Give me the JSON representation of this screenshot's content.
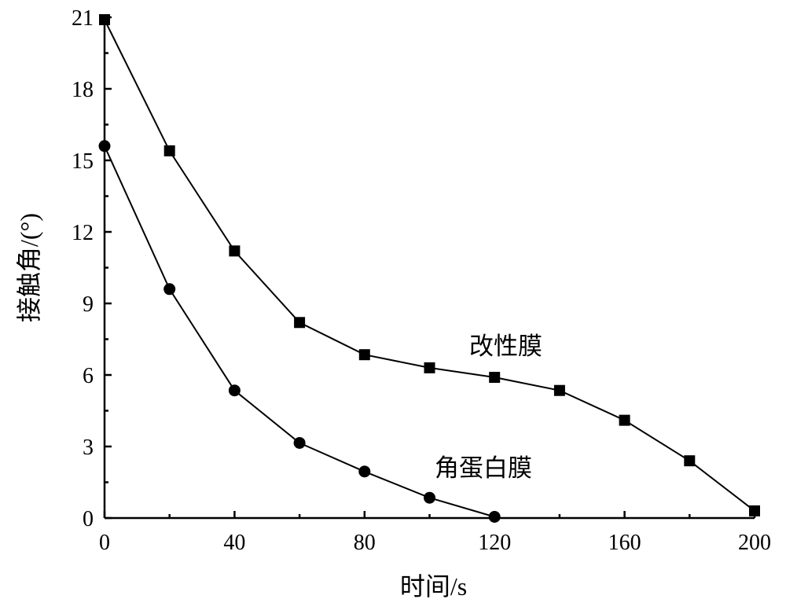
{
  "chart_data": {
    "type": "line",
    "xlabel": "时间/s",
    "ylabel": "接触角/(°)",
    "xlim": [
      0,
      200
    ],
    "ylim": [
      0,
      21
    ],
    "xticks": [
      0,
      40,
      80,
      120,
      160,
      200
    ],
    "yticks": [
      0,
      3,
      6,
      9,
      12,
      15,
      18,
      21
    ],
    "xtick_labels": [
      "0",
      "40",
      "80",
      "120",
      "160",
      "200"
    ],
    "ytick_labels": [
      "0",
      "3",
      "6",
      "9",
      "12",
      "15",
      "18",
      "21"
    ],
    "grid": false,
    "series": [
      {
        "name": "改性膜",
        "marker": "square",
        "x": [
          0,
          20,
          40,
          60,
          80,
          100,
          120,
          140,
          160,
          180,
          200
        ],
        "y": [
          20.9,
          15.4,
          11.2,
          8.2,
          6.85,
          6.3,
          5.9,
          5.35,
          4.1,
          2.4,
          0.3
        ]
      },
      {
        "name": "角蛋白膜",
        "marker": "circle",
        "x": [
          0,
          20,
          40,
          60,
          80,
          100,
          120
        ],
        "y": [
          15.6,
          9.6,
          5.35,
          3.15,
          1.95,
          0.85,
          0.05
        ]
      }
    ]
  }
}
